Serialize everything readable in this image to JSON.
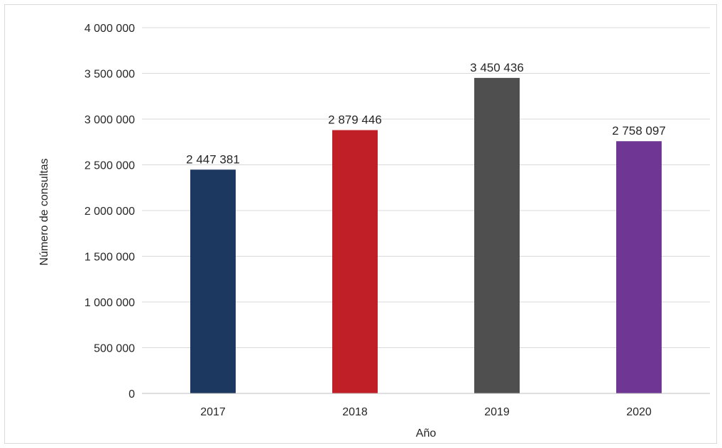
{
  "chart_data": {
    "type": "bar",
    "categories": [
      "2017",
      "2018",
      "2019",
      "2020"
    ],
    "values": [
      2447381,
      2879446,
      3450436,
      2758097
    ],
    "value_labels": [
      "2 447 381",
      "2 879 446",
      "3 450 436",
      "2 758 097"
    ],
    "colors": [
      "#1c3861",
      "#c01f27",
      "#4f4f4f",
      "#6f3793"
    ],
    "xlabel": "Año",
    "ylabel": "Número de consultas",
    "ylim": [
      0,
      4000000
    ],
    "yticks": [
      0,
      500000,
      1000000,
      1500000,
      2000000,
      2500000,
      3000000,
      3500000,
      4000000
    ],
    "ytick_labels": [
      "0",
      "500 000",
      "1 000 000",
      "1 500 000",
      "2 000 000",
      "2 500 000",
      "3 000 000",
      "3 500 000",
      "4 000 000"
    ],
    "grid": true,
    "legend": "none"
  }
}
